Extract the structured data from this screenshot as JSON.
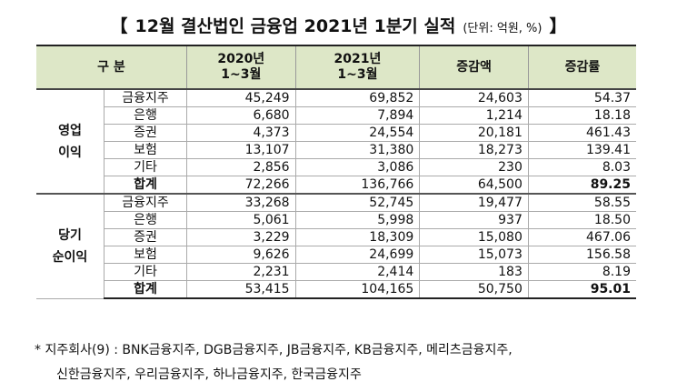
{
  "title": {
    "open": "【",
    "text": "12월 결산법인 금융업 2021년 1분기 실적",
    "unit": "(단위: 억원, %)",
    "close": "】"
  },
  "table": {
    "headers": [
      "구    분",
      "2020년\n1~3월",
      "2021년\n1~3월",
      "증감액",
      "증감률"
    ],
    "groups": [
      {
        "label": "영업\n이익",
        "rows": [
          [
            "금융지주",
            "45,249",
            "69,852",
            "24,603",
            "54.37"
          ],
          [
            "은행",
            "6,680",
            "7,894",
            "1,214",
            "18.18"
          ],
          [
            "증권",
            "4,373",
            "24,554",
            "20,181",
            "461.43"
          ],
          [
            "보험",
            "13,107",
            "31,380",
            "18,273",
            "139.41"
          ],
          [
            "기타",
            "2,856",
            "3,086",
            "230",
            "8.03"
          ],
          [
            "합계",
            "72,266",
            "136,766",
            "64,500",
            "89.25"
          ]
        ]
      },
      {
        "label": "당기\n순이익",
        "rows": [
          [
            "금융지주",
            "33,268",
            "52,745",
            "19,477",
            "58.55"
          ],
          [
            "은행",
            "5,061",
            "5,998",
            "937",
            "18.50"
          ],
          [
            "증권",
            "3,229",
            "18,309",
            "15,080",
            "467.06"
          ],
          [
            "보험",
            "9,626",
            "24,699",
            "15,073",
            "156.58"
          ],
          [
            "기타",
            "2,231",
            "2,414",
            "183",
            "8.19"
          ],
          [
            "합계",
            "53,415",
            "104,165",
            "50,750",
            "95.01"
          ]
        ]
      }
    ]
  },
  "footnote": {
    "mark": "*",
    "lines": [
      "지주회사(9) : BNK금융지주, DGB금융지주, JB금융지주, KB금융지주, 메리츠금융지주,",
      "신한금융지주, 우리금융지주, 하나금융지주, 한국금융지주"
    ]
  }
}
